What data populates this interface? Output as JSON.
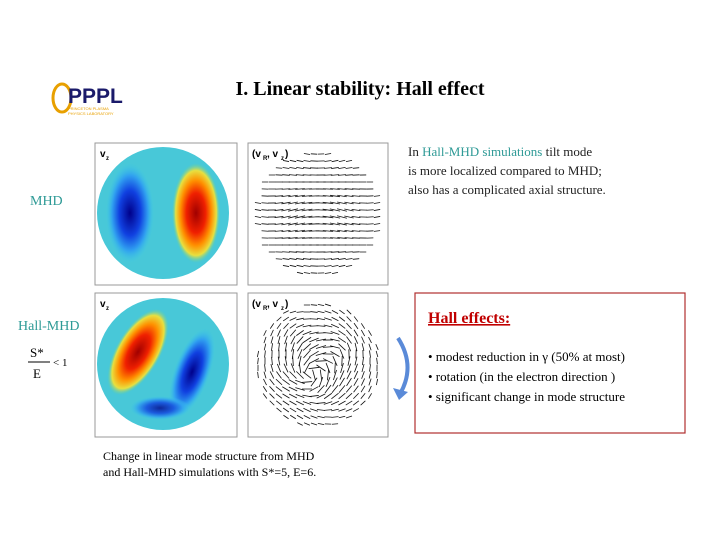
{
  "header": {
    "title": "I.  Linear stability: Hall effect",
    "logo": {
      "text": "PPPL",
      "subtitle_lines": [
        "PRINCETON PLASMA",
        "PHYSICS LABORATORY"
      ]
    }
  },
  "figure": {
    "row_labels": [
      "MHD",
      "Hall-MHD"
    ],
    "criterion": {
      "numerator": "S*",
      "denominator": "E",
      "relation": "< 1"
    },
    "panel_labels": {
      "scalar": [
        "v",
        "z"
      ],
      "vector": [
        "(v",
        "R",
        ", v",
        "z",
        ")"
      ]
    },
    "caption_lines": [
      "Change in linear mode structure from MHD",
      "and Hall-MHD simulations with S*=5, E=6."
    ]
  },
  "description": {
    "lines": [
      [
        "In ",
        "Hall-MHD simulations",
        " tilt mode"
      ],
      [
        "is more localized compared to MHD;"
      ],
      [
        "also has a complicated axial structure."
      ]
    ]
  },
  "hall_effects": {
    "heading": "Hall effects:",
    "bullets": [
      "• modest reduction in γ (50% at most)",
      "• rotation (in the electron direction )",
      "• significant change in mode structure"
    ]
  }
}
